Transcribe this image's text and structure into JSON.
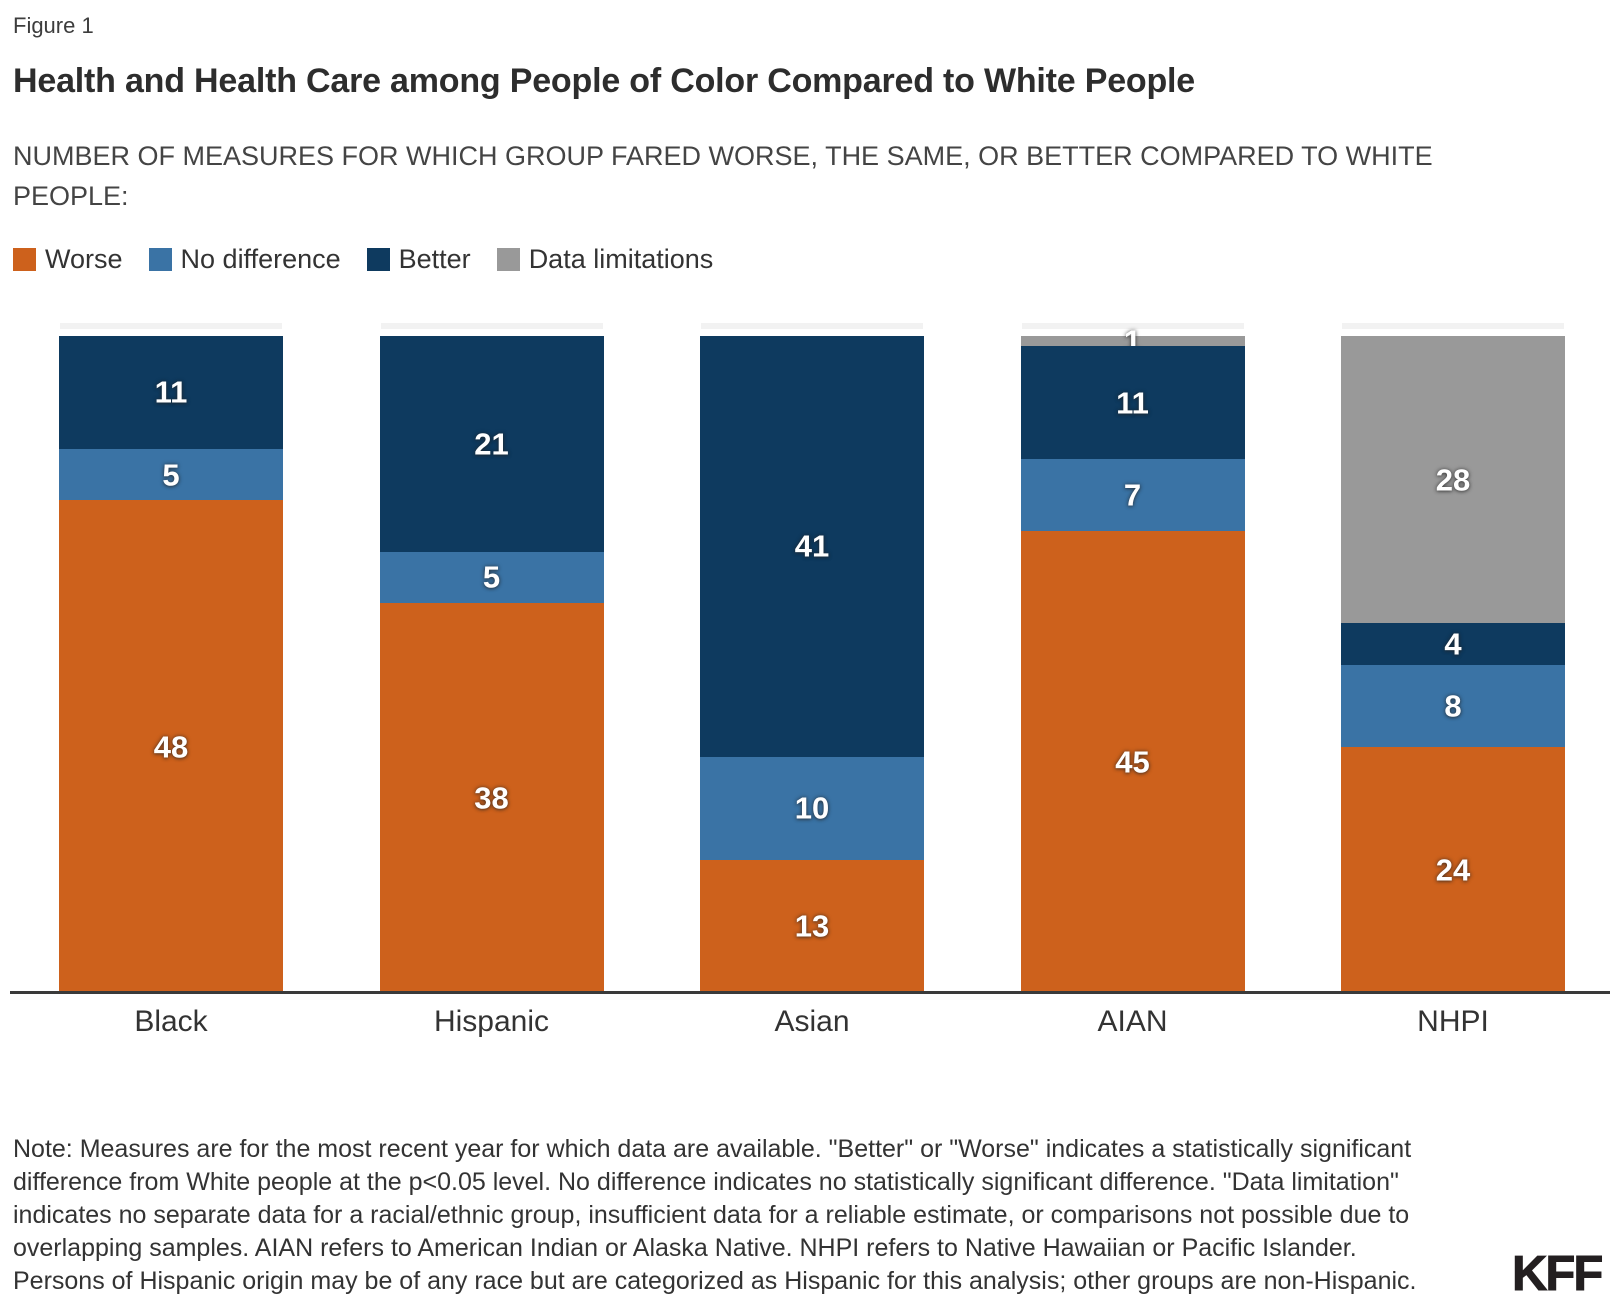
{
  "figure_label": "Figure 1",
  "title": "Health and Health Care among People of Color Compared to White People",
  "subtitle_lines": [
    "NUMBER OF MEASURES FOR WHICH GROUP FARED WORSE, THE SAME, OR BETTER COMPARED TO WHITE",
    "PEOPLE:"
  ],
  "chart_data": {
    "type": "bar",
    "stacked": true,
    "categories": [
      "Black",
      "Hispanic",
      "Asian",
      "AIAN",
      "NHPI"
    ],
    "series": [
      {
        "name": "Worse",
        "color": "#cd611c",
        "values": [
          48,
          38,
          13,
          45,
          24
        ]
      },
      {
        "name": "No difference",
        "color": "#3a73a5",
        "values": [
          5,
          5,
          10,
          7,
          8
        ]
      },
      {
        "name": "Better",
        "color": "#0e3a5f",
        "values": [
          11,
          21,
          41,
          11,
          4
        ]
      },
      {
        "name": "Data limitations",
        "color": "#999999",
        "values": [
          0,
          0,
          0,
          1,
          28
        ]
      }
    ],
    "ylim": [
      0,
      64
    ],
    "grid": false,
    "legend_position": "top-left",
    "value_labels": true,
    "axis_line_color": "#3a3a3a"
  },
  "note_lines": [
    "Note: Measures are for the most recent year for which data are available. \"Better\" or \"Worse\" indicates a statistically significant",
    "difference from White people at the p<0.05 level. No difference indicates no statistically significant difference. \"Data limitation\"",
    "indicates no separate data for a racial/ethnic group, insufficient data for a reliable estimate, or comparisons not possible due to",
    "overlapping samples. AIAN refers to American Indian or Alaska Native. NHPI refers to Native Hawaiian or Pacific Islander.",
    "Persons of Hispanic origin may be of any race but are categorized as Hispanic for this analysis; other groups are non-Hispanic."
  ],
  "logo_text": "KFF"
}
